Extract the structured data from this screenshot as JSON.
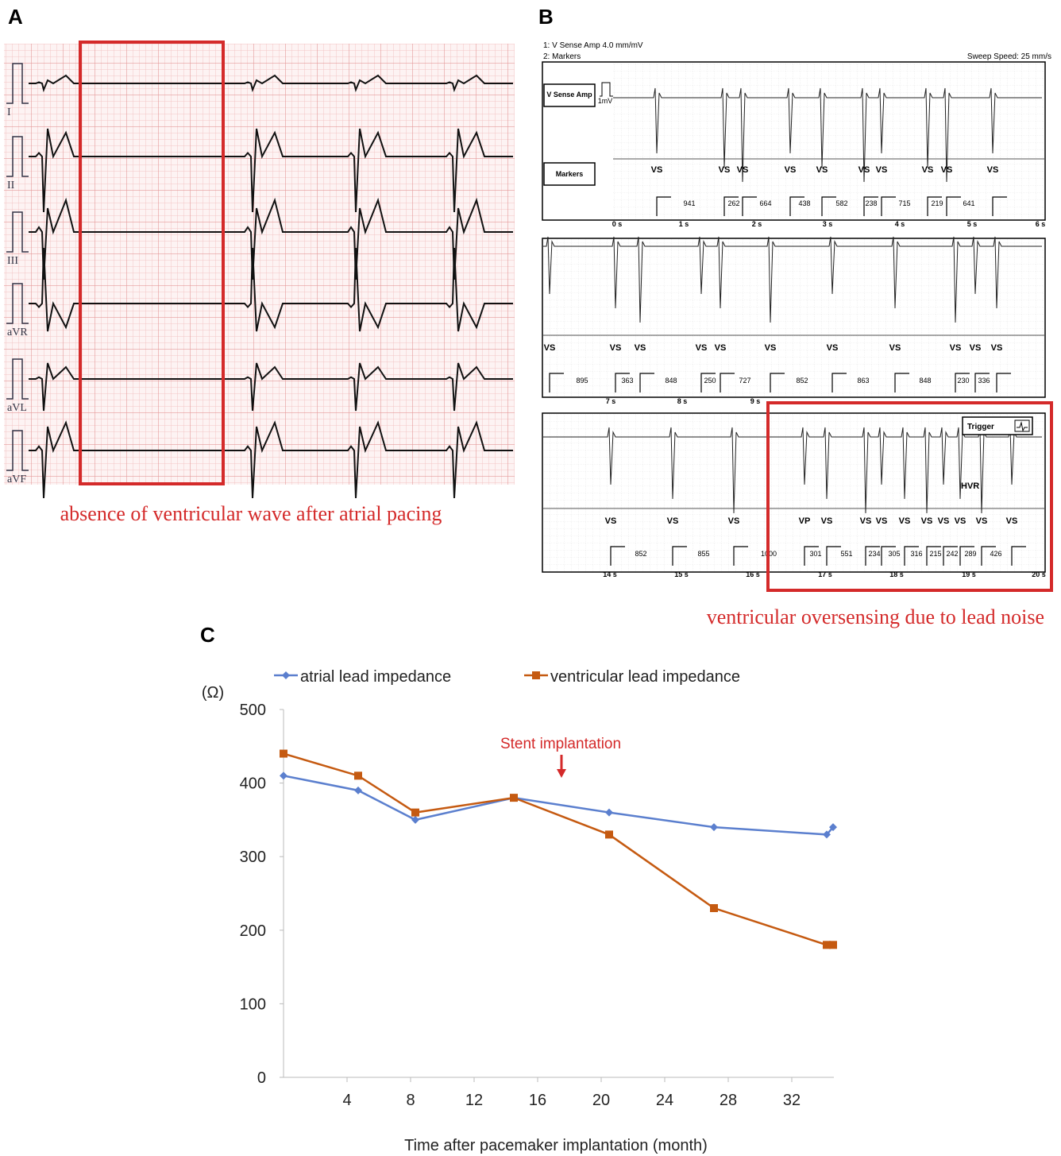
{
  "panels": {
    "a": {
      "label": "A",
      "leads": [
        "I",
        "II",
        "III",
        "aVR",
        "aVL",
        "aVF"
      ],
      "caption": "absence of ventricular wave after atrial pacing"
    },
    "b": {
      "label": "B",
      "header": [
        "1:  V Sense Amp   4.0 mm/mV",
        "2:  Markers",
        "Sweep Speed: 25 mm/s"
      ],
      "channel_labels": [
        "V Sense Amp",
        "1mV",
        "Markers"
      ],
      "strips": [
        {
          "markers": [
            "VS",
            "VS",
            "VS",
            "VS",
            "VS",
            "VS",
            "VS",
            "VS",
            "VS",
            "VS"
          ],
          "intervals": [
            941,
            262,
            664,
            438,
            582,
            238,
            715,
            219,
            641
          ],
          "times": [
            "0 s",
            "1 s",
            "2 s",
            "3 s",
            "4 s",
            "5 s",
            "6 s"
          ]
        },
        {
          "markers": [
            "VS",
            "VS",
            "VS",
            "VS",
            "VS",
            "VS",
            "VS",
            "VS",
            "VS",
            "VS",
            "VS"
          ],
          "intervals": [
            895,
            363,
            848,
            250,
            727,
            852,
            863,
            848,
            230,
            336
          ],
          "times": [
            "7 s",
            "8 s",
            "9 s"
          ]
        },
        {
          "markers": [
            "VS",
            "VS",
            "VS",
            "VP",
            "VS",
            "VS",
            "VS",
            "VS",
            "VS",
            "VS",
            "VS",
            "VS",
            "VS"
          ],
          "intervals": [
            852,
            855,
            1000,
            301,
            551,
            234,
            305,
            316,
            215,
            242,
            289,
            426
          ],
          "times": [
            "14 s",
            "15 s",
            "16 s",
            "17 s",
            "18 s",
            "19 s",
            "20 s"
          ]
        }
      ],
      "trigger": "Trigger",
      "hvr": "HVR",
      "caption": "ventricular oversensing due to lead noise"
    },
    "c": {
      "label": "C"
    }
  },
  "chart_data": {
    "type": "line",
    "y_axis_label": "(Ω)",
    "x_axis_label": "Time after pacemaker implantation (month)",
    "annotation": "Stent implantation",
    "x": [
      0,
      4.7,
      8.3,
      14.5,
      20.5,
      27.1,
      34.2,
      34.6
    ],
    "series": [
      {
        "name": "atrial lead impedance",
        "color": "#5b7fce",
        "marker": "diamond",
        "values": [
          410,
          390,
          350,
          380,
          360,
          340,
          330,
          340
        ]
      },
      {
        "name": "ventricular lead impedance",
        "color": "#c55a11",
        "marker": "square",
        "values": [
          440,
          410,
          360,
          380,
          330,
          230,
          180,
          180
        ]
      }
    ],
    "xlim": [
      0,
      35
    ],
    "xticks": [
      4,
      8,
      12,
      16,
      20,
      24,
      28,
      32
    ],
    "ylim": [
      0,
      500
    ],
    "yticks": [
      0,
      100,
      200,
      300,
      400,
      500
    ],
    "grid": false,
    "legend": "top"
  }
}
